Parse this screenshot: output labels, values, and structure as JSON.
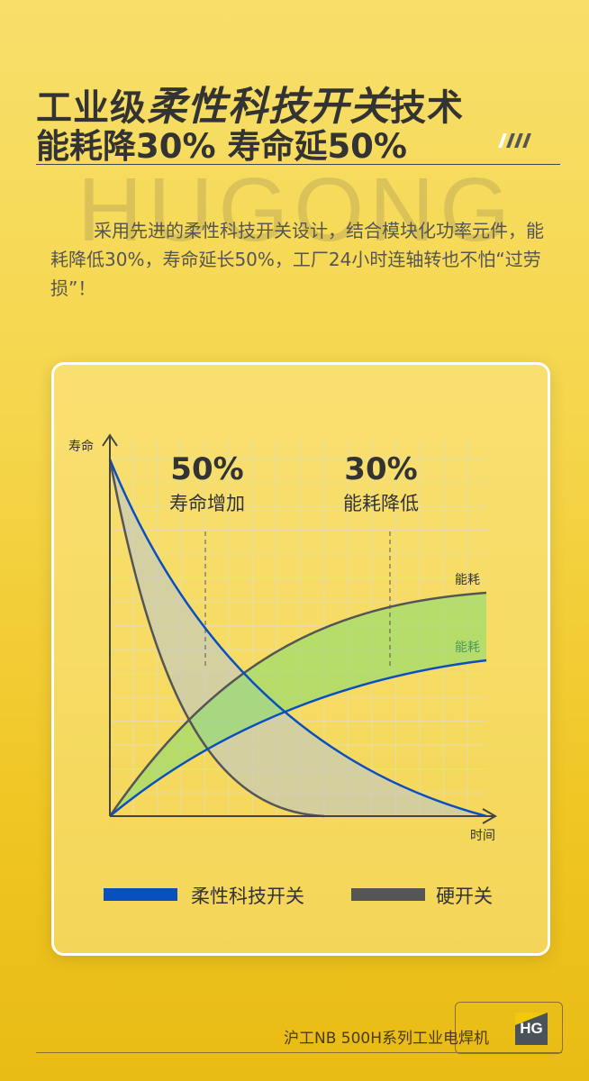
{
  "headline": {
    "line1_a": "工业级",
    "line1_b": "柔性科技开关",
    "line1_c": "技术",
    "line2": "能耗降30% 寿命延50%"
  },
  "watermark": "HUGONG",
  "description": "采用先进的柔性科技开关设计，结合模块化功率元件，能耗降低30%，寿命延长50%，工厂24小时连轴转也不怕“过劳损”！",
  "chart_data": {
    "type": "line",
    "ylabel": "寿命",
    "xlabel": "时间",
    "annotations": [
      {
        "value": "50%",
        "label": "寿命增加"
      },
      {
        "value": "30%",
        "label": "能耗降低"
      }
    ],
    "curve_labels": [
      "能耗",
      "能耗"
    ],
    "series": [
      {
        "name": "柔性科技开关",
        "color": "#0a4fc0"
      },
      {
        "name": "硬开关",
        "color": "#555555"
      }
    ],
    "grid": true,
    "legend": "bottom"
  },
  "footer": {
    "product": "沪工NB 500H系列工业电焊机",
    "logo": "HG"
  }
}
